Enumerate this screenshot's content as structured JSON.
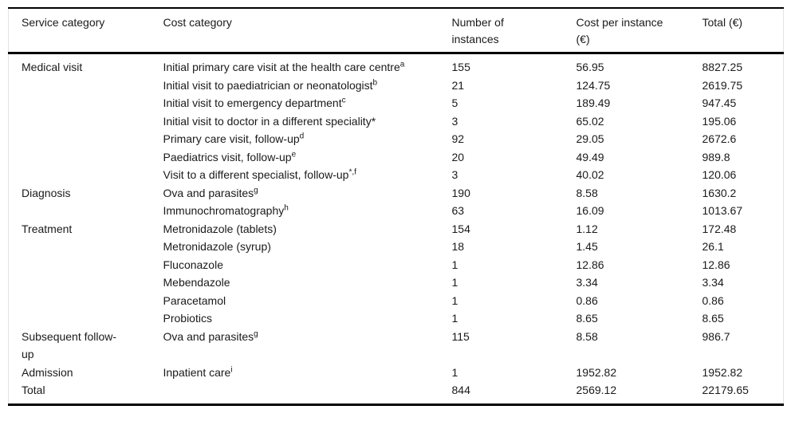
{
  "table": {
    "headers": [
      "Service category",
      "Cost category",
      "Number of instances",
      "Cost per instance (€)",
      "Total (€)"
    ],
    "rows": [
      {
        "service": "Medical visit",
        "cost": "Initial primary care visit at the health care centre",
        "cost_sup": "a",
        "instances": "155",
        "cost_per_instance": "56.95",
        "total": "8827.25"
      },
      {
        "service": "",
        "cost": "Initial visit to paediatrician or neonatologist",
        "cost_sup": "b",
        "instances": "21",
        "cost_per_instance": "124.75",
        "total": "2619.75"
      },
      {
        "service": "",
        "cost": "Initial visit to emergency department",
        "cost_sup": "c",
        "instances": "5",
        "cost_per_instance": "189.49",
        "total": "947.45"
      },
      {
        "service": "",
        "cost": "Initial visit to doctor in a different speciality*",
        "cost_sup": "",
        "instances": "3",
        "cost_per_instance": "65.02",
        "total": "195.06"
      },
      {
        "service": "",
        "cost": "Primary care visit, follow-up",
        "cost_sup": "d",
        "instances": "92",
        "cost_per_instance": "29.05",
        "total": "2672.6"
      },
      {
        "service": "",
        "cost": "Paediatrics visit, follow-up",
        "cost_sup": "e",
        "instances": "20",
        "cost_per_instance": "49.49",
        "total": "989.8"
      },
      {
        "service": "",
        "cost": "Visit to a different specialist, follow-up",
        "cost_sup": "*,f",
        "instances": "3",
        "cost_per_instance": "40.02",
        "total": "120.06"
      },
      {
        "service": "Diagnosis",
        "cost": "Ova and parasites",
        "cost_sup": "g",
        "instances": "190",
        "cost_per_instance": "8.58",
        "total": "1630.2"
      },
      {
        "service": "",
        "cost": "Immunochromatography",
        "cost_sup": "h",
        "instances": "63",
        "cost_per_instance": "16.09",
        "total": "1013.67"
      },
      {
        "service": "Treatment",
        "cost": "Metronidazole (tablets)",
        "cost_sup": "",
        "instances": "154",
        "cost_per_instance": "1.12",
        "total": "172.48"
      },
      {
        "service": "",
        "cost": "Metronidazole (syrup)",
        "cost_sup": "",
        "instances": "18",
        "cost_per_instance": "1.45",
        "total": "26.1"
      },
      {
        "service": "",
        "cost": "Fluconazole",
        "cost_sup": "",
        "instances": "1",
        "cost_per_instance": "12.86",
        "total": "12.86"
      },
      {
        "service": "",
        "cost": "Mebendazole",
        "cost_sup": "",
        "instances": "1",
        "cost_per_instance": "3.34",
        "total": "3.34"
      },
      {
        "service": "",
        "cost": "Paracetamol",
        "cost_sup": "",
        "instances": "1",
        "cost_per_instance": "0.86",
        "total": "0.86"
      },
      {
        "service": "",
        "cost": "Probiotics",
        "cost_sup": "",
        "instances": "1",
        "cost_per_instance": "8.65",
        "total": "8.65"
      },
      {
        "service": "Subsequent follow-up",
        "cost": "Ova and parasites",
        "cost_sup": "g",
        "instances": "115",
        "cost_per_instance": "8.58",
        "total": "986.7"
      },
      {
        "service": "Admission",
        "cost": "Inpatient care",
        "cost_sup": "i",
        "instances": "1",
        "cost_per_instance": "1952.82",
        "total": "1952.82"
      },
      {
        "service": "Total",
        "cost": "",
        "cost_sup": "",
        "instances": "844",
        "cost_per_instance": "2569.12",
        "total": "22179.65"
      }
    ]
  },
  "colors": {
    "rule": "#000000",
    "side_border": "#e3e3e3",
    "text": "#1a1a1a",
    "background": "#ffffff"
  }
}
